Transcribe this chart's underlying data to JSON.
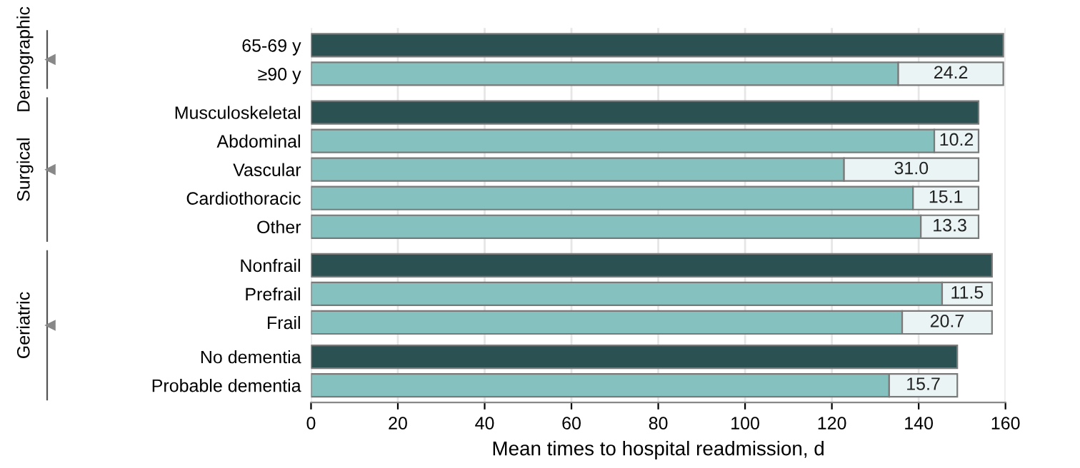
{
  "chart_data": {
    "type": "bar",
    "orientation": "horizontal",
    "stacked": true,
    "xlabel": "Mean times to hospital readmission, d",
    "categories": [
      "65-69 y",
      "≥90 y",
      "Musculoskeletal",
      "Abdominal",
      "Vascular",
      "Cardiothoracic",
      "Other",
      "Nonfrail",
      "Prefrail",
      "Frail",
      "No dementia",
      "Probable dementia"
    ],
    "series": [
      {
        "colors": [
          "#2b5152",
          "#85c2bf",
          "#2b5152",
          "#85c2bf",
          "#85c2bf",
          "#85c2bf",
          "#85c2bf",
          "#2b5152",
          "#85c2bf",
          "#85c2bf",
          "#2b5152",
          "#85c2bf"
        ],
        "values": [
          159.5,
          135.3,
          153.8,
          143.6,
          122.8,
          138.7,
          140.5,
          156.9,
          145.4,
          136.2,
          148.9,
          133.2
        ]
      },
      {
        "color": "#eaf4f4",
        "values": [
          null,
          24.2,
          null,
          10.2,
          31.0,
          15.1,
          13.3,
          null,
          11.5,
          20.7,
          null,
          15.7
        ],
        "value_labels": [
          null,
          "24.2",
          null,
          "10.2",
          "31.0",
          "15.1",
          "13.3",
          null,
          "11.5",
          "20.7",
          null,
          "15.7"
        ]
      }
    ],
    "annotations": [
      "Demographic",
      "Surgical",
      "Geriatric"
    ],
    "xlim": [
      0,
      160
    ],
    "xticks": [
      0,
      20,
      40,
      60,
      80,
      100,
      120,
      140,
      160
    ],
    "grid": "x"
  }
}
